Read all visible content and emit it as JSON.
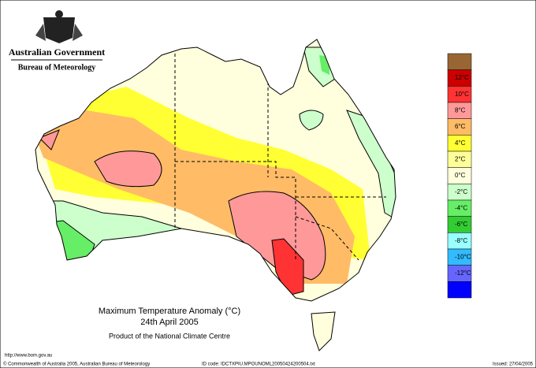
{
  "header": {
    "government": "Australian Government",
    "agency": "Bureau of Meteorology"
  },
  "map": {
    "title": "Maximum Temperature Anomaly (°C)",
    "date": "24th April 2005",
    "product": "Product of the National Climate Centre"
  },
  "legend": {
    "labels": [
      "12°C",
      "10°C",
      "8°C",
      "6°C",
      "4°C",
      "2°C",
      "0°C",
      "-2°C",
      "-4°C",
      "-6°C",
      "-8°C",
      "-10°C",
      "-12°C"
    ],
    "colors": [
      "#996633",
      "#cc0000",
      "#ff3333",
      "#ff9999",
      "#ffbb66",
      "#ffff33",
      "#ffff99",
      "#ffffdd",
      "#ccffcc",
      "#66ee66",
      "#33cc33",
      "#99ffff",
      "#33bbff",
      "#6666ff",
      "#0000ff"
    ]
  },
  "footer": {
    "url": "http://www.bom.gov.au",
    "copyright": "© Commonwealth of Australia 2005, Australian Bureau of Meteorology",
    "id_code": "ID code: IDCTXPIU.MPOUNOML20050424200504.txt",
    "issued": "Issued: 27/04/2005"
  }
}
